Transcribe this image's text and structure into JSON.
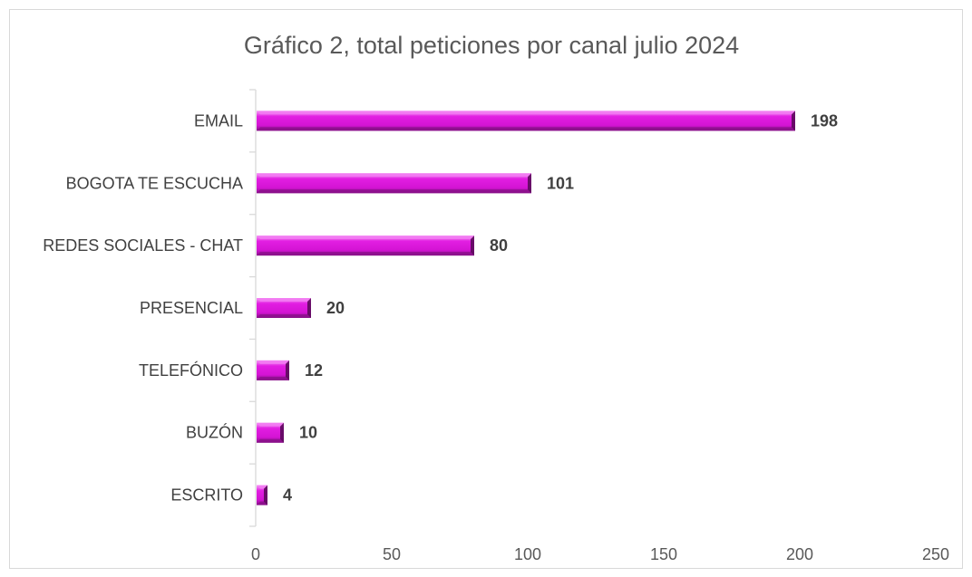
{
  "chart_data": {
    "type": "bar",
    "orientation": "horizontal",
    "title": "Gráfico 2, total peticiones por canal julio 2024",
    "categories": [
      "EMAIL",
      "BOGOTA TE ESCUCHA",
      "REDES SOCIALES - CHAT",
      "PRESENCIAL",
      "TELEFÓNICO",
      "BUZÓN",
      "ESCRITO"
    ],
    "values": [
      198,
      101,
      80,
      20,
      12,
      10,
      4
    ],
    "xlim": [
      0,
      250
    ],
    "xticks": [
      0,
      50,
      100,
      150,
      200,
      250
    ],
    "xlabel": "",
    "ylabel": "",
    "grid": false,
    "legend": "none",
    "data_labels": true,
    "colors": {
      "bar": "#e21ee2",
      "bar_light": "#f27bf2",
      "bar_dark": "#8a108a",
      "axis": "#d9d9d9"
    }
  }
}
